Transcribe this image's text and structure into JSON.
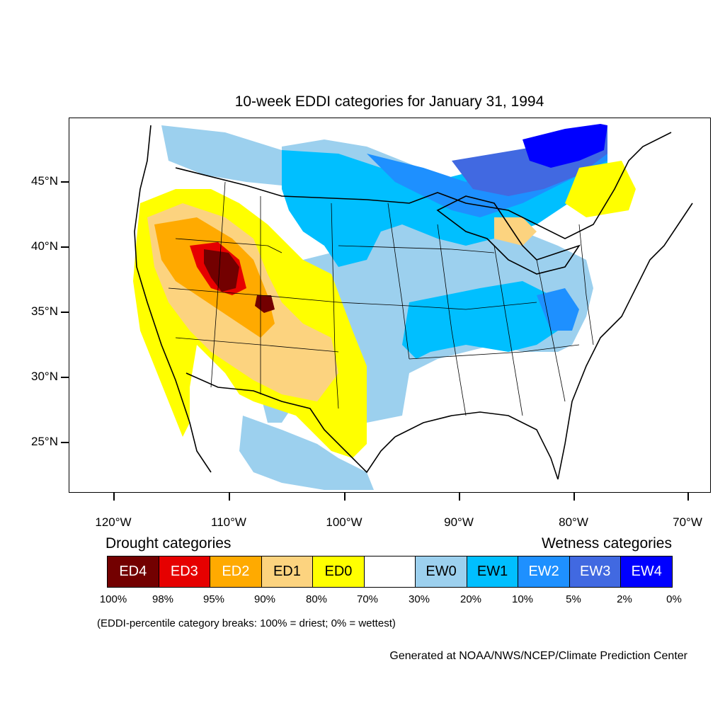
{
  "title": "10-week EDDI categories for January 31, 1994",
  "lat_labels": [
    "45°N",
    "40°N",
    "35°N",
    "30°N",
    "25°N"
  ],
  "lon_labels": [
    "120°W",
    "110°W",
    "100°W",
    "90°W",
    "80°W",
    "70°W"
  ],
  "legend": {
    "drought_heading": "Drought categories",
    "wetness_heading": "Wetness categories",
    "categories": [
      {
        "label": "ED4",
        "color": "#730000",
        "text_color": "#ffffff"
      },
      {
        "label": "ED3",
        "color": "#e60000",
        "text_color": "#ffffff"
      },
      {
        "label": "ED2",
        "color": "#ffaa00",
        "text_color": "#ffffff"
      },
      {
        "label": "ED1",
        "color": "#fcd37f",
        "text_color": "#000000"
      },
      {
        "label": "ED0",
        "color": "#ffff00",
        "text_color": "#000000"
      },
      {
        "label": "",
        "color": "#ffffff",
        "text_color": "#000000"
      },
      {
        "label": "EW0",
        "color": "#9cd0ee",
        "text_color": "#000000"
      },
      {
        "label": "EW1",
        "color": "#00bfff",
        "text_color": "#000000"
      },
      {
        "label": "EW2",
        "color": "#1e90ff",
        "text_color": "#ffffff"
      },
      {
        "label": "EW3",
        "color": "#4169e1",
        "text_color": "#ffffff"
      },
      {
        "label": "EW4",
        "color": "#0000ff",
        "text_color": "#ffffff"
      }
    ],
    "percent_breaks": [
      "100%",
      "98%",
      "95%",
      "90%",
      "80%",
      "70%",
      "30%",
      "20%",
      "10%",
      "5%",
      "2%",
      "0%"
    ]
  },
  "footnote": "(EDDI-percentile category breaks: 100% = driest; 0% = wettest)",
  "credit": "Generated at NOAA/NWS/NCEP/Climate Prediction Center"
}
